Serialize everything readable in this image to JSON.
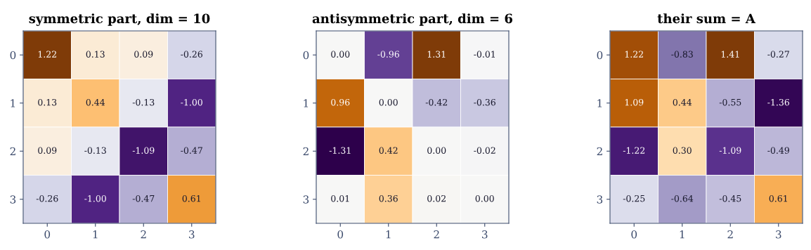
{
  "chart_data": [
    {
      "type": "heatmap",
      "title": "symmetric part, dim = 10",
      "categories": [
        "0",
        "1",
        "2",
        "3"
      ],
      "y_categories": [
        "0",
        "1",
        "2",
        "3"
      ],
      "grid": false,
      "cells": [
        [
          1.22,
          0.13,
          0.09,
          -0.26
        ],
        [
          0.13,
          0.44,
          -0.13,
          -1.0
        ],
        [
          0.09,
          -0.13,
          -1.09,
          -0.47
        ],
        [
          -0.26,
          -1.0,
          -0.47,
          0.61
        ]
      ],
      "cell_labels": [
        [
          "1.22",
          "0.13",
          "0.09",
          "-0.26"
        ],
        [
          "0.13",
          "0.44",
          "-0.13",
          "-1.00"
        ],
        [
          "0.09",
          "-0.13",
          "-1.09",
          "-0.47"
        ],
        [
          "-0.26",
          "-1.00",
          "-0.47",
          "0.61"
        ]
      ]
    },
    {
      "type": "heatmap",
      "title": "antisymmetric part, dim = 6",
      "categories": [
        "0",
        "1",
        "2",
        "3"
      ],
      "y_categories": [
        "0",
        "1",
        "2",
        "3"
      ],
      "grid": false,
      "cells": [
        [
          0.0,
          -0.96,
          1.31,
          -0.01
        ],
        [
          0.96,
          0.0,
          -0.42,
          -0.36
        ],
        [
          -1.31,
          0.42,
          0.0,
          -0.02
        ],
        [
          0.01,
          0.36,
          0.02,
          0.0
        ]
      ],
      "cell_labels": [
        [
          "0.00",
          "-0.96",
          "1.31",
          "-0.01"
        ],
        [
          "0.96",
          "0.00",
          "-0.42",
          "-0.36"
        ],
        [
          "-1.31",
          "0.42",
          "0.00",
          "-0.02"
        ],
        [
          "0.01",
          "0.36",
          "0.02",
          "0.00"
        ]
      ]
    },
    {
      "type": "heatmap",
      "title": "their sum = A",
      "categories": [
        "0",
        "1",
        "2",
        "3"
      ],
      "y_categories": [
        "0",
        "1",
        "2",
        "3"
      ],
      "grid": false,
      "cells": [
        [
          1.22,
          -0.83,
          1.41,
          -0.27
        ],
        [
          1.09,
          0.44,
          -0.55,
          -1.36
        ],
        [
          -1.22,
          0.3,
          -1.09,
          -0.49
        ],
        [
          -0.25,
          -0.64,
          -0.45,
          0.61
        ]
      ],
      "cell_labels": [
        [
          "1.22",
          "-0.83",
          "1.41",
          "-0.27"
        ],
        [
          "1.09",
          "0.44",
          "-0.55",
          "-1.36"
        ],
        [
          "-1.22",
          "0.30",
          "-1.09",
          "-0.49"
        ],
        [
          "-0.25",
          "-0.64",
          "-0.45",
          "0.61"
        ]
      ]
    }
  ]
}
